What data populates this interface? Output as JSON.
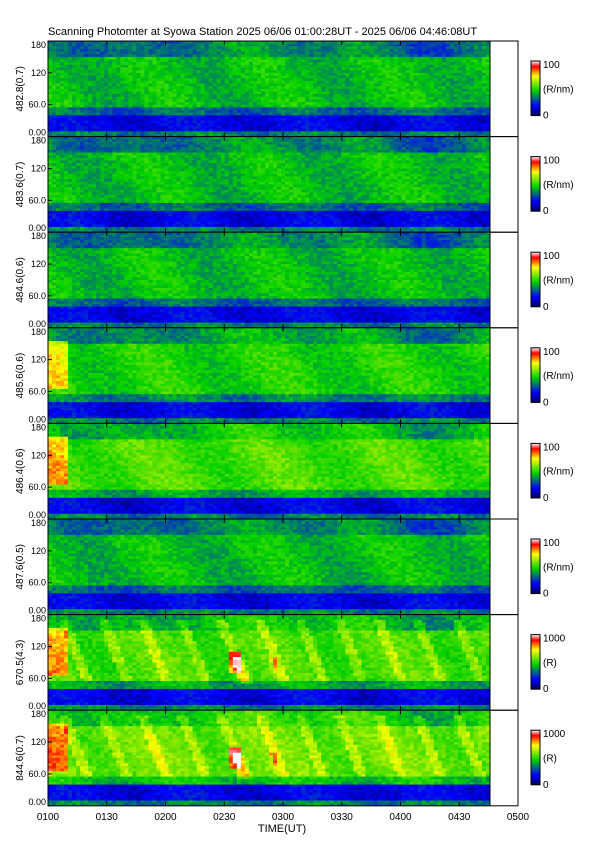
{
  "chart_data": {
    "type": "heatmap",
    "title": "Scanning Photomter at Syowa Station  2025 06/06 01:00:28UT - 2025 06/06 04:46:08UT",
    "xlabel": "TIME(UT)",
    "x_ticks": [
      "0100",
      "0130",
      "0200",
      "0230",
      "0300",
      "0330",
      "0400",
      "0430",
      "0500"
    ],
    "y_ticks": [
      "0.00",
      "60.0",
      "120",
      "180"
    ],
    "ylim": [
      0,
      180
    ],
    "panels": [
      {
        "ylabel": "482.8(0.7)",
        "cbar_max": "100",
        "cbar_min": "0",
        "cbar_unit": "(R/nm)",
        "scale_max": 100,
        "intensity": "mid",
        "auroral_arcs": false
      },
      {
        "ylabel": "483.6(0.7)",
        "cbar_max": "100",
        "cbar_min": "0",
        "cbar_unit": "(R/nm)",
        "scale_max": 100,
        "intensity": "mid",
        "auroral_arcs": false
      },
      {
        "ylabel": "484.6(0.6)",
        "cbar_max": "100",
        "cbar_min": "0",
        "cbar_unit": "(R/nm)",
        "scale_max": 100,
        "intensity": "mid",
        "auroral_arcs": false
      },
      {
        "ylabel": "485.6(0.6)",
        "cbar_max": "100",
        "cbar_min": "0",
        "cbar_unit": "(R/nm)",
        "scale_max": 100,
        "intensity": "mid-high",
        "auroral_arcs": false
      },
      {
        "ylabel": "486.4(0.6)",
        "cbar_max": "100",
        "cbar_min": "0",
        "cbar_unit": "(R/nm)",
        "scale_max": 100,
        "intensity": "high",
        "auroral_arcs": false
      },
      {
        "ylabel": "487.6(0.5)",
        "cbar_max": "100",
        "cbar_min": "0",
        "cbar_unit": "(R/nm)",
        "scale_max": 100,
        "intensity": "mid",
        "auroral_arcs": false
      },
      {
        "ylabel": "670.5(4.3)",
        "cbar_max": "1000",
        "cbar_min": "0",
        "cbar_unit": "(R)",
        "scale_max": 1000,
        "intensity": "high",
        "auroral_arcs": true
      },
      {
        "ylabel": "844.6(0.7)",
        "cbar_max": "1000",
        "cbar_min": "0",
        "cbar_unit": "(R)",
        "scale_max": 1000,
        "intensity": "very-high",
        "auroral_arcs": true
      }
    ],
    "colorbar_colors": [
      "#00008b",
      "#0000ff",
      "#00ff00",
      "#ffff00",
      "#ff0000",
      "#ffffff"
    ]
  }
}
